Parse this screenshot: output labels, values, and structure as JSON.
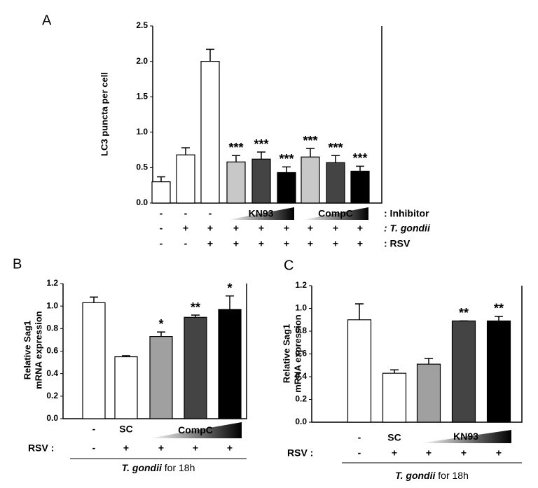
{
  "chart_data": [
    {
      "type": "bar",
      "panel_label": "A",
      "y_label": [
        "LC3 puncta per cell"
      ],
      "ylim": [
        0,
        2.5
      ],
      "yticks": [
        {
          "value": 0,
          "label": "0.0"
        },
        {
          "value": 0.5,
          "label": "0.5"
        },
        {
          "value": 1,
          "label": "1.0"
        },
        {
          "value": 1.5,
          "label": "1.5"
        },
        {
          "value": 2,
          "label": "2.0"
        },
        {
          "value": 2.5,
          "label": "2.5"
        }
      ],
      "values": [
        0.3,
        0.68,
        2.0,
        0.58,
        0.62,
        0.43,
        0.65,
        0.57,
        0.45
      ],
      "errors": [
        0.07,
        0.1,
        0.17,
        0.09,
        0.1,
        0.08,
        0.12,
        0.1,
        0.07
      ],
      "colors": [
        "#ffffff",
        "#ffffff",
        "#ffffff",
        "#c8c8c8",
        "#444444",
        "#000000",
        "#c8c8c8",
        "#444444",
        "#000000"
      ],
      "annotations": [
        null,
        null,
        null,
        "***",
        "***",
        "***",
        "***",
        "***",
        "***"
      ],
      "condition_rows": [
        {
          "name": ": Inhibitor",
          "labels": [
            "-",
            "-",
            "-",
            null,
            null,
            null,
            null,
            null,
            null
          ],
          "wedges": [
            {
              "label": "KN93",
              "first": 3,
              "last": 5
            },
            {
              "label": "CompC",
              "first": 6,
              "last": 8
            }
          ]
        },
        {
          "name": ": T. gondii",
          "labels": [
            "-",
            "+",
            "+",
            "+",
            "+",
            "+",
            "+",
            "+",
            "+"
          ]
        },
        {
          "name": ": RSV",
          "labels": [
            "-",
            "-",
            "+",
            "+",
            "+",
            "+",
            "+",
            "+",
            "+"
          ]
        }
      ]
    },
    {
      "type": "bar",
      "panel_label": "B",
      "y_label": [
        "Relative Sag1",
        "mRNA expression"
      ],
      "ylim": [
        0,
        1.2
      ],
      "yticks": [
        {
          "value": 0,
          "label": "0.0"
        },
        {
          "value": 0.2,
          "label": "0.2"
        },
        {
          "value": 0.4,
          "label": "0.4"
        },
        {
          "value": 0.6,
          "label": "0.6"
        },
        {
          "value": 0.8,
          "label": "0.8"
        },
        {
          "value": 1,
          "label": "1.0"
        },
        {
          "value": 1.2,
          "label": "1.2"
        }
      ],
      "values": [
        1.03,
        0.55,
        0.73,
        0.9,
        0.97
      ],
      "errors": [
        0.05,
        0.01,
        0.04,
        0.02,
        0.12
      ],
      "colors": [
        "#ffffff",
        "#ffffff",
        "#a0a0a0",
        "#444444",
        "#000000"
      ],
      "annotations": [
        null,
        null,
        "*",
        "**",
        "*"
      ],
      "condition_rows": [
        {
          "labels": [
            "-",
            "SC",
            null,
            null,
            null
          ],
          "wedges": [
            {
              "label": "CompC",
              "first": 2,
              "last": 4
            }
          ]
        },
        {
          "name": "RSV :",
          "labels": [
            "-",
            "+",
            "+",
            "+",
            "+"
          ]
        }
      ],
      "footer": [
        "T. gondii",
        "for 18h"
      ]
    },
    {
      "type": "bar",
      "panel_label": "C",
      "y_label": [
        "Relative Sag1",
        "mRNA expression"
      ],
      "ylim": [
        0,
        1.2
      ],
      "yticks": [
        {
          "value": 0,
          "label": "0.0"
        },
        {
          "value": 0.2,
          "label": "0.2"
        },
        {
          "value": 0.4,
          "label": "0.4"
        },
        {
          "value": 0.6,
          "label": "0.6"
        },
        {
          "value": 0.8,
          "label": "0.8"
        },
        {
          "value": 1,
          "label": "1.0"
        },
        {
          "value": 1.2,
          "label": "1.2"
        }
      ],
      "values": [
        0.9,
        0.43,
        0.51,
        0.89,
        0.89
      ],
      "errors": [
        0.14,
        0.03,
        0.05,
        0.0,
        0.04
      ],
      "colors": [
        "#ffffff",
        "#ffffff",
        "#a0a0a0",
        "#444444",
        "#000000"
      ],
      "annotations": [
        null,
        null,
        null,
        "**",
        "**"
      ],
      "condition_rows": [
        {
          "labels": [
            "-",
            "SC",
            null,
            null,
            null
          ],
          "wedges": [
            {
              "label": "KN93",
              "first": 2,
              "last": 4
            }
          ]
        },
        {
          "name": "RSV :",
          "labels": [
            "-",
            "+",
            "+",
            "+",
            "+"
          ]
        }
      ],
      "footer": [
        "T. gondii",
        "for 18h"
      ]
    }
  ]
}
